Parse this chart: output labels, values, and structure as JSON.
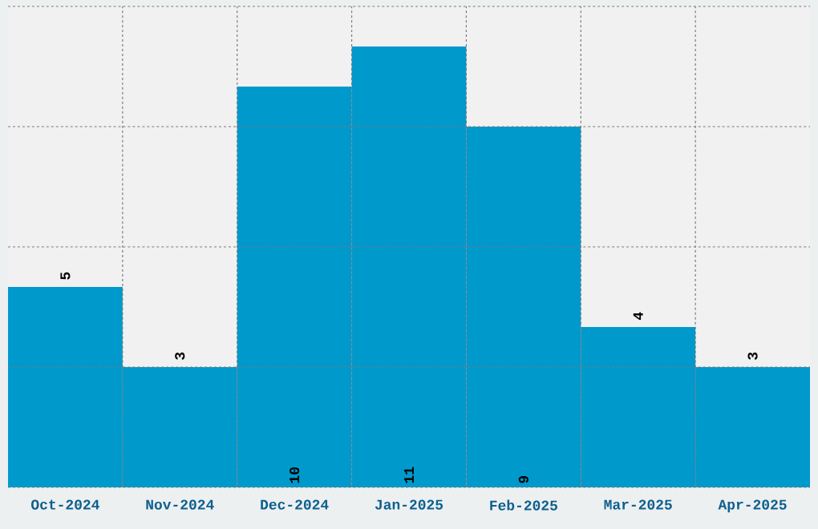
{
  "chart_data": {
    "type": "bar",
    "categories": [
      "Oct-2024",
      "Nov-2024",
      "Dec-2024",
      "Jan-2025",
      "Feb-2025",
      "Mar-2025",
      "Apr-2025"
    ],
    "values": [
      5,
      3,
      10,
      11,
      9,
      4,
      3
    ],
    "color": "#0099cc",
    "ylim": [
      0,
      12
    ],
    "yticks": [
      {
        "value": 0,
        "label": null
      },
      {
        "value": 3,
        "label": null
      },
      {
        "value": 6,
        "label": null
      },
      {
        "value": 9,
        "label": null
      },
      {
        "value": 12,
        "label": null
      }
    ],
    "tick_labels": "x",
    "grid": true,
    "data_labels": true
  }
}
